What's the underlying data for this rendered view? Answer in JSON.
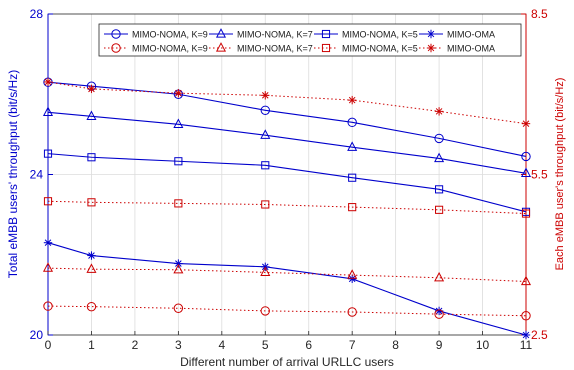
{
  "chart_data": {
    "type": "line",
    "title": "",
    "xlabel": "Different number of arrival URLLC  users",
    "ylabel_left": "Total eMBB users' throughput (bit/s/Hz)",
    "ylabel_right": "Each eMBB user's throughput (bit/s/Hz)",
    "x": [
      0,
      1,
      3,
      5,
      7,
      9,
      11
    ],
    "xlim": [
      0,
      11
    ],
    "xticks": [
      "0",
      "1",
      "2",
      "3",
      "4",
      "5",
      "6",
      "7",
      "8",
      "9",
      "10",
      "11"
    ],
    "ylim_left": [
      20,
      28
    ],
    "yticks_left": [
      "20",
      "24",
      "28"
    ],
    "ylim_right": [
      2.5,
      8.5
    ],
    "yticks_right": [
      "2.5",
      "5.5",
      "8.5"
    ],
    "grid": true,
    "legend_position": "top-right",
    "colors": {
      "left_axis": "#0000cc",
      "right_axis": "#cc0000"
    },
    "series": [
      {
        "name": "MIMO-NOMA, K=9",
        "axis": "left",
        "marker": "circle",
        "line": "solid",
        "color": "#0000cc",
        "values": [
          26.3,
          26.2,
          26.0,
          25.6,
          25.3,
          24.9,
          24.45
        ]
      },
      {
        "name": "MIMO-NOMA, K=7",
        "axis": "left",
        "marker": "triangle",
        "line": "solid",
        "color": "#0000cc",
        "values": [
          25.55,
          25.45,
          25.25,
          24.98,
          24.68,
          24.4,
          24.03
        ]
      },
      {
        "name": "MIMO-NOMA, K=5",
        "axis": "left",
        "marker": "square",
        "line": "solid",
        "color": "#0000cc",
        "values": [
          24.52,
          24.43,
          24.33,
          24.23,
          23.92,
          23.63,
          23.07
        ]
      },
      {
        "name": "MIMO-OMA",
        "axis": "left",
        "marker": "star",
        "line": "solid",
        "color": "#0000cc",
        "values": [
          22.3,
          21.98,
          21.78,
          21.7,
          21.4,
          20.6,
          20.0
        ]
      },
      {
        "name": "MIMO-NOMA, K=9",
        "axis": "right",
        "marker": "circle",
        "line": "dotted",
        "color": "#cc0000",
        "values": [
          3.04,
          3.03,
          3.0,
          2.95,
          2.93,
          2.89,
          2.86
        ]
      },
      {
        "name": "MIMO-NOMA, K=7",
        "axis": "right",
        "marker": "triangle",
        "line": "dotted",
        "color": "#cc0000",
        "values": [
          3.75,
          3.73,
          3.72,
          3.67,
          3.62,
          3.57,
          3.5
        ]
      },
      {
        "name": "MIMO-NOMA, K=5",
        "axis": "right",
        "marker": "square",
        "line": "dotted",
        "color": "#cc0000",
        "values": [
          5.0,
          4.98,
          4.96,
          4.94,
          4.89,
          4.84,
          4.77
        ]
      },
      {
        "name": "MIMO-OMA",
        "axis": "right",
        "marker": "star",
        "line": "dotted",
        "color": "#cc0000",
        "values": [
          7.23,
          7.1,
          7.02,
          6.98,
          6.89,
          6.68,
          6.45
        ]
      }
    ]
  }
}
